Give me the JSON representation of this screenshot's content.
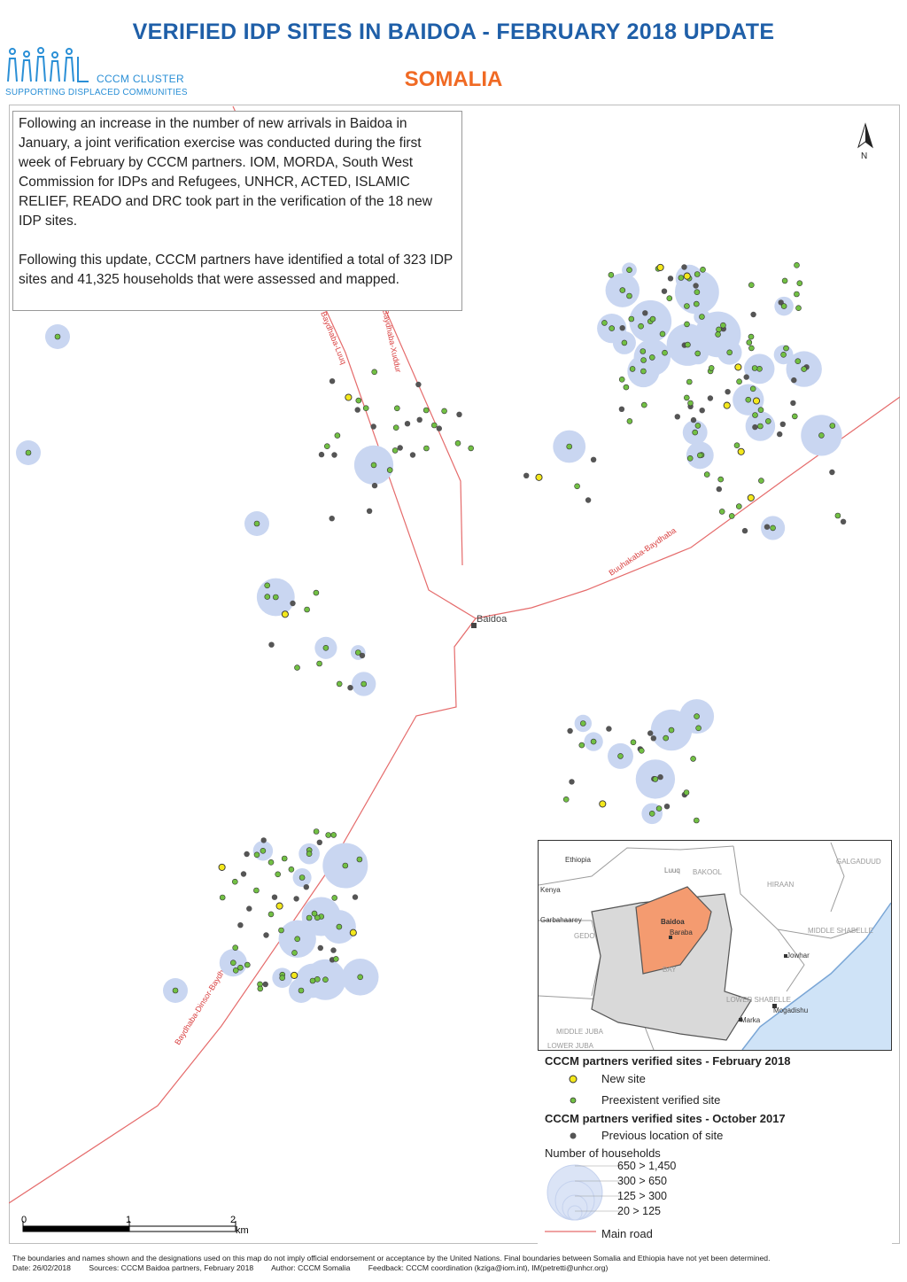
{
  "header": {
    "title": "VERIFIED IDP SITES IN BAIDOA - FEBRUARY 2018 UPDATE",
    "subtitle": "SOMALIA",
    "logo_name": "CCCM CLUSTER",
    "logo_tagline": "SUPPORTING DISPLACED COMMUNITIES"
  },
  "intro": {
    "paragraph1": "Following an increase in the number of new arrivals in Baidoa in January, a joint verification exercise was conducted during the first week of February by CCCM partners. IOM, MORDA, South West Commission for IDPs and Refugees, UNHCR, ACTED, ISLAMIC RELIEF, READO and DRC took part in the verification of the 18 new IDP sites.",
    "paragraph2": "Following this update, CCCM partners have identified a total of 323 IDP sites and 41,325 households that were assessed and mapped."
  },
  "map": {
    "north_label": "N",
    "town_label": "Baidoa",
    "road_labels": [
      "Baydhaba-Luuq",
      "Baydhaba-Xuddur",
      "Buuhakaba-Baydhaba",
      "Baydhaba-Dinsor-Baydhaba"
    ],
    "colors": {
      "new_site": "#f4e81c",
      "preexistent_site": "#72c044",
      "previous_location": "#555555",
      "household_bubble": "#c9d6f1",
      "main_road": "#e56b6b"
    }
  },
  "inset": {
    "labels": [
      "Ethiopia",
      "Kenya",
      "Luuq",
      "BAKOOL",
      "HIRAAN",
      "GALGADUUD",
      "Garbahaarey",
      "GEDO",
      "Baidoa",
      "Baraba",
      "BAY",
      "MIDDLE SHABELLE",
      "Jowhar",
      "LOWER SHABELLE",
      "Mogadishu",
      "Marka",
      "MIDDLE JUBA",
      "LOWER JUBA"
    ],
    "colors": {
      "baidoa_district": "#f49b70",
      "bay_region": "#d9d9d9",
      "sea": "#cfe3f7"
    }
  },
  "legend": {
    "title_feb": "CCCM partners verified sites - February 2018",
    "new_site": "New site",
    "preexistent": "Preexistent verified site",
    "title_oct": "CCCM partners verified sites - October 2017",
    "previous": "Previous location of site",
    "households_title": "Number of households",
    "classes": [
      "650 > 1,450",
      "300 > 650",
      "125 > 300",
      "20 > 125"
    ],
    "main_road": "Main road"
  },
  "scale": {
    "ticks": [
      "0",
      "1",
      "2"
    ],
    "unit": "km"
  },
  "footer": {
    "disclaimer": "The boundaries and names shown and the designations used on this map do not imply official endorsement or acceptance by the United Nations. Final boundaries between Somalia and Ethiopia have not yet been determined.",
    "date": "Date: 26/02/2018",
    "sources": "Sources: CCCM Baidoa partners, February 2018",
    "author": "Author: CCCM Somalia",
    "feedback": "Feedback: CCCM coordination (kziga@iom.int), IM(petretti@unhcr.org)"
  }
}
